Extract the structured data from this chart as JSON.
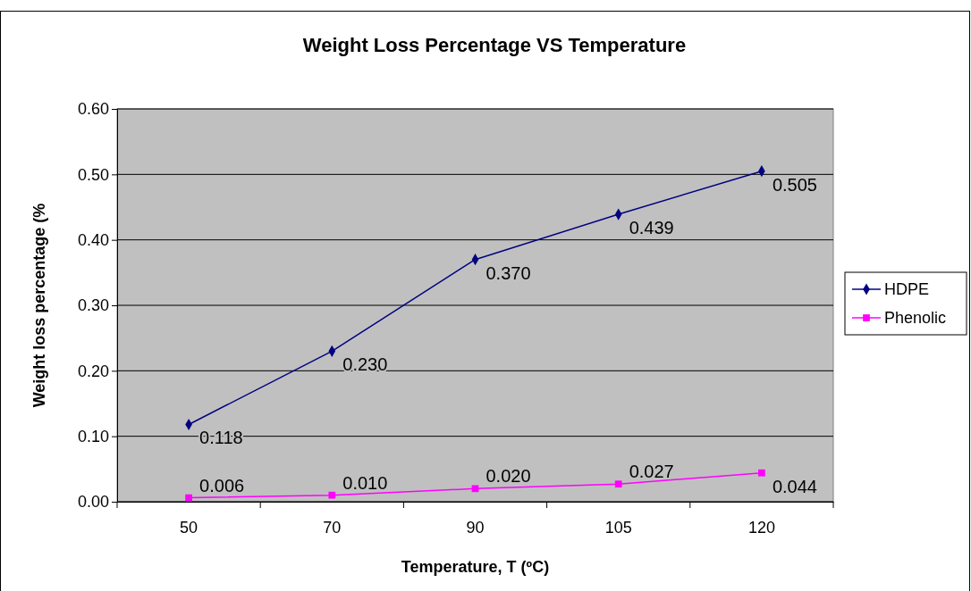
{
  "chart_data": {
    "type": "line",
    "title": "Weight Loss Percentage VS Temperature",
    "xlabel": "Temperature, T (ºC)",
    "ylabel": "Weight loss percentage (%",
    "categories": [
      "50",
      "70",
      "90",
      "105",
      "120"
    ],
    "series": [
      {
        "name": "HDPE",
        "color": "#000080",
        "marker": "diamond",
        "values": [
          0.118,
          0.23,
          0.37,
          0.439,
          0.505
        ],
        "value_labels": [
          "0.118",
          "0.230",
          "0.370",
          "0.439",
          "0.505"
        ]
      },
      {
        "name": "Phenolic",
        "color": "#ff00ff",
        "marker": "square",
        "values": [
          0.006,
          0.01,
          0.02,
          0.027,
          0.044
        ],
        "value_labels": [
          "0.006",
          "0.010",
          "0.020",
          "0.027",
          "0.044"
        ]
      }
    ],
    "ylim": [
      0,
      0.6
    ],
    "yticks": [
      {
        "value": 0,
        "label": "0.00"
      },
      {
        "value": 0.1,
        "label": "0.10"
      },
      {
        "value": 0.2,
        "label": "0.20"
      },
      {
        "value": 0.3,
        "label": "0.30"
      },
      {
        "value": 0.4,
        "label": "0.40"
      },
      {
        "value": 0.5,
        "label": "0.50"
      },
      {
        "value": 0.6,
        "label": "0.60"
      }
    ],
    "grid": "y",
    "legend": "right"
  }
}
